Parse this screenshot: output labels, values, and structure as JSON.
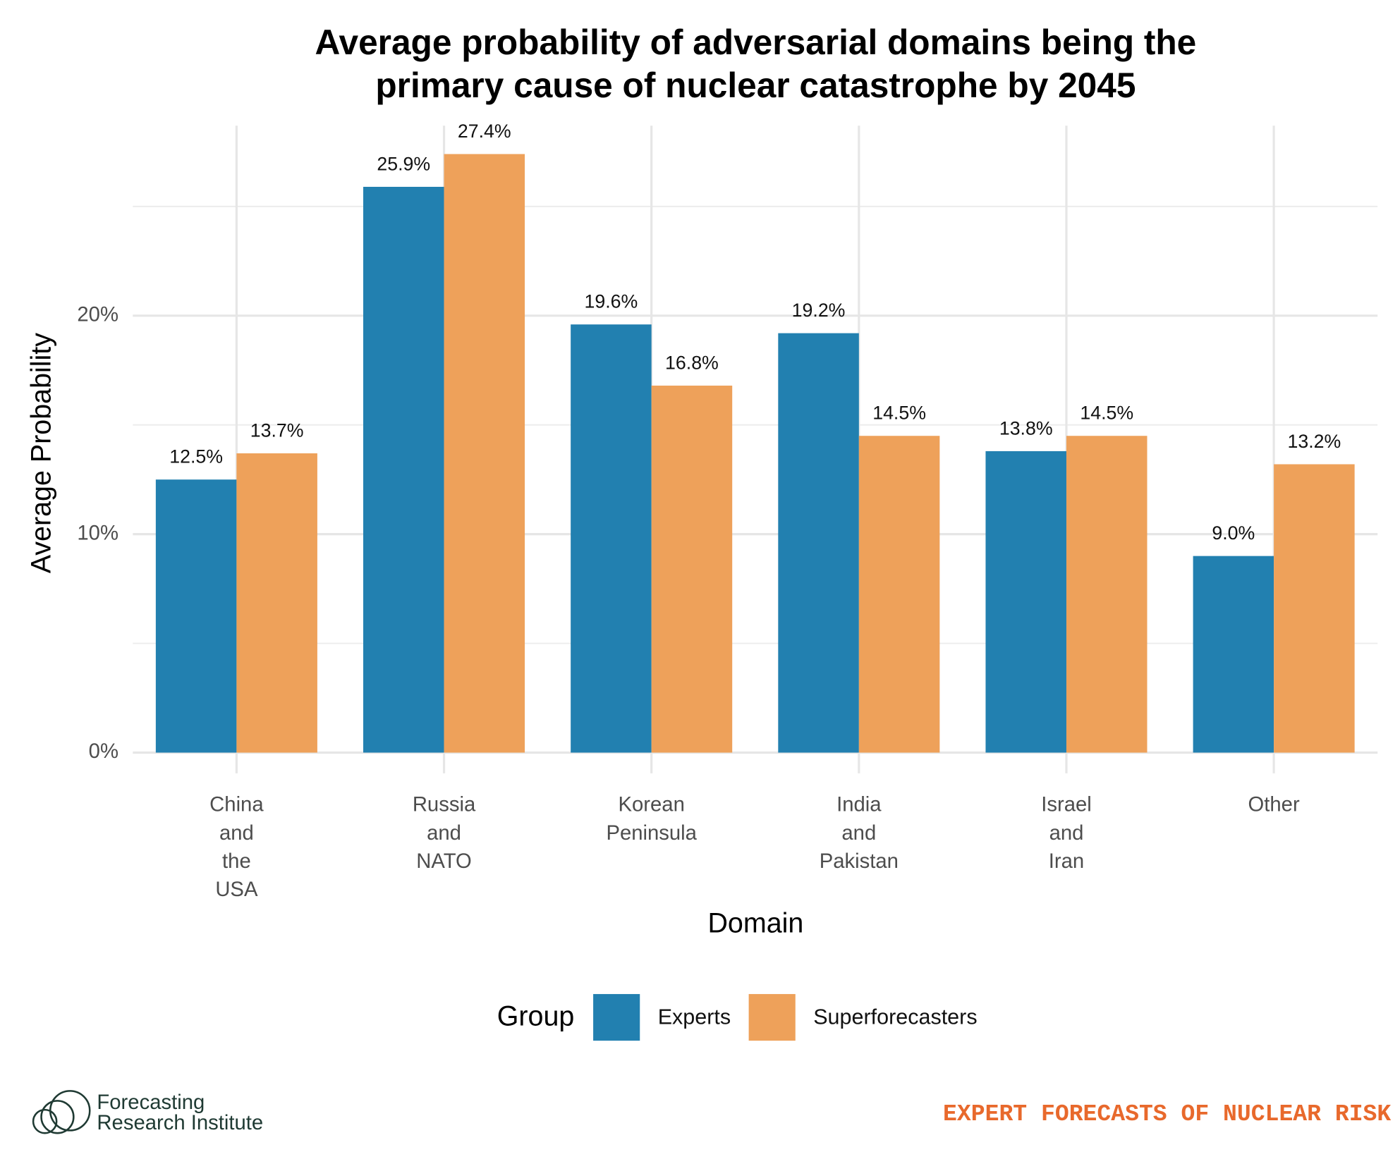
{
  "chart_data": {
    "type": "bar",
    "title": [
      "Average probability of adversarial domains being the",
      "primary cause of nuclear catastrophe by 2045"
    ],
    "x_label": "Domain",
    "y_label": "Average Probability",
    "categories": [
      "China and the USA",
      "Russia and NATO",
      "Korean Peninsula",
      "India and Pakistan",
      "Israel and Iran",
      "Other"
    ],
    "series": [
      {
        "name": "Experts",
        "color": "#2280b0",
        "values": [
          12.5,
          25.9,
          19.6,
          19.2,
          13.8,
          9.0
        ],
        "value_labels": [
          "12.5%",
          "25.9%",
          "19.6%",
          "19.2%",
          "13.8%",
          "9.0%"
        ]
      },
      {
        "name": "Superforecasters",
        "color": "#eea15a",
        "values": [
          13.7,
          27.4,
          16.8,
          14.5,
          14.5,
          13.2
        ],
        "value_labels": [
          "13.7%",
          "27.4%",
          "16.8%",
          "14.5%",
          "14.5%",
          "13.2%"
        ]
      }
    ],
    "ylim": [
      -0.95,
      28.7
    ],
    "yticks": [
      {
        "value": 0,
        "label": "0%"
      },
      {
        "value": 10,
        "label": "10%"
      },
      {
        "value": 20,
        "label": "20%"
      }
    ],
    "yticks_minor": [
      5,
      15,
      25
    ],
    "grid": true,
    "legend_title": "Group",
    "legend_position": "bottom"
  },
  "footer": {
    "logo_lines": [
      "Forecasting",
      "Research Institute"
    ],
    "tagline": "EXPERT FORECASTS OF NUCLEAR RISK"
  }
}
